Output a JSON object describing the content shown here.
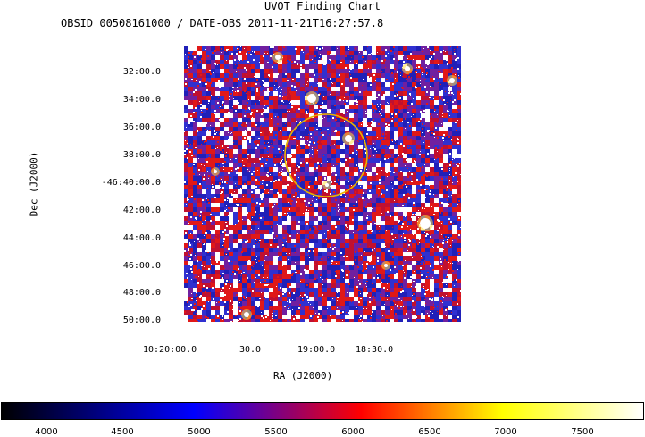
{
  "title": "UVOT Finding Chart",
  "subtitle": "OBSID 00508161000 / DATE-OBS 2011-11-21T16:27:57.8",
  "axes": {
    "xlabel": "RA (J2000)",
    "ylabel": "Dec (J2000)",
    "dec_ticks": [
      "32:00.0",
      "34:00.0",
      "36:00.0",
      "38:00.0",
      "-46:40:00.0",
      "42:00.0",
      "44:00.0",
      "46:00.0",
      "48:00.0",
      "50:00.0"
    ],
    "ra_ticks": [
      "10:20:00.0",
      "30.0",
      "19:00.0",
      "18:30.0"
    ]
  },
  "colorbar": {
    "ticks": [
      "4000",
      "4500",
      "5000",
      "5500",
      "6000",
      "6500",
      "7000",
      "7500"
    ],
    "colors": [
      "#000000",
      "#0000ff",
      "#ff0000",
      "#ffff00",
      "#ffffff"
    ]
  },
  "image": {
    "source_marker_color": "#e8b400",
    "background_colors": [
      "#2020b8",
      "#3030d0",
      "#7020a0",
      "#c01030",
      "#e01818",
      "#ffffff"
    ]
  }
}
